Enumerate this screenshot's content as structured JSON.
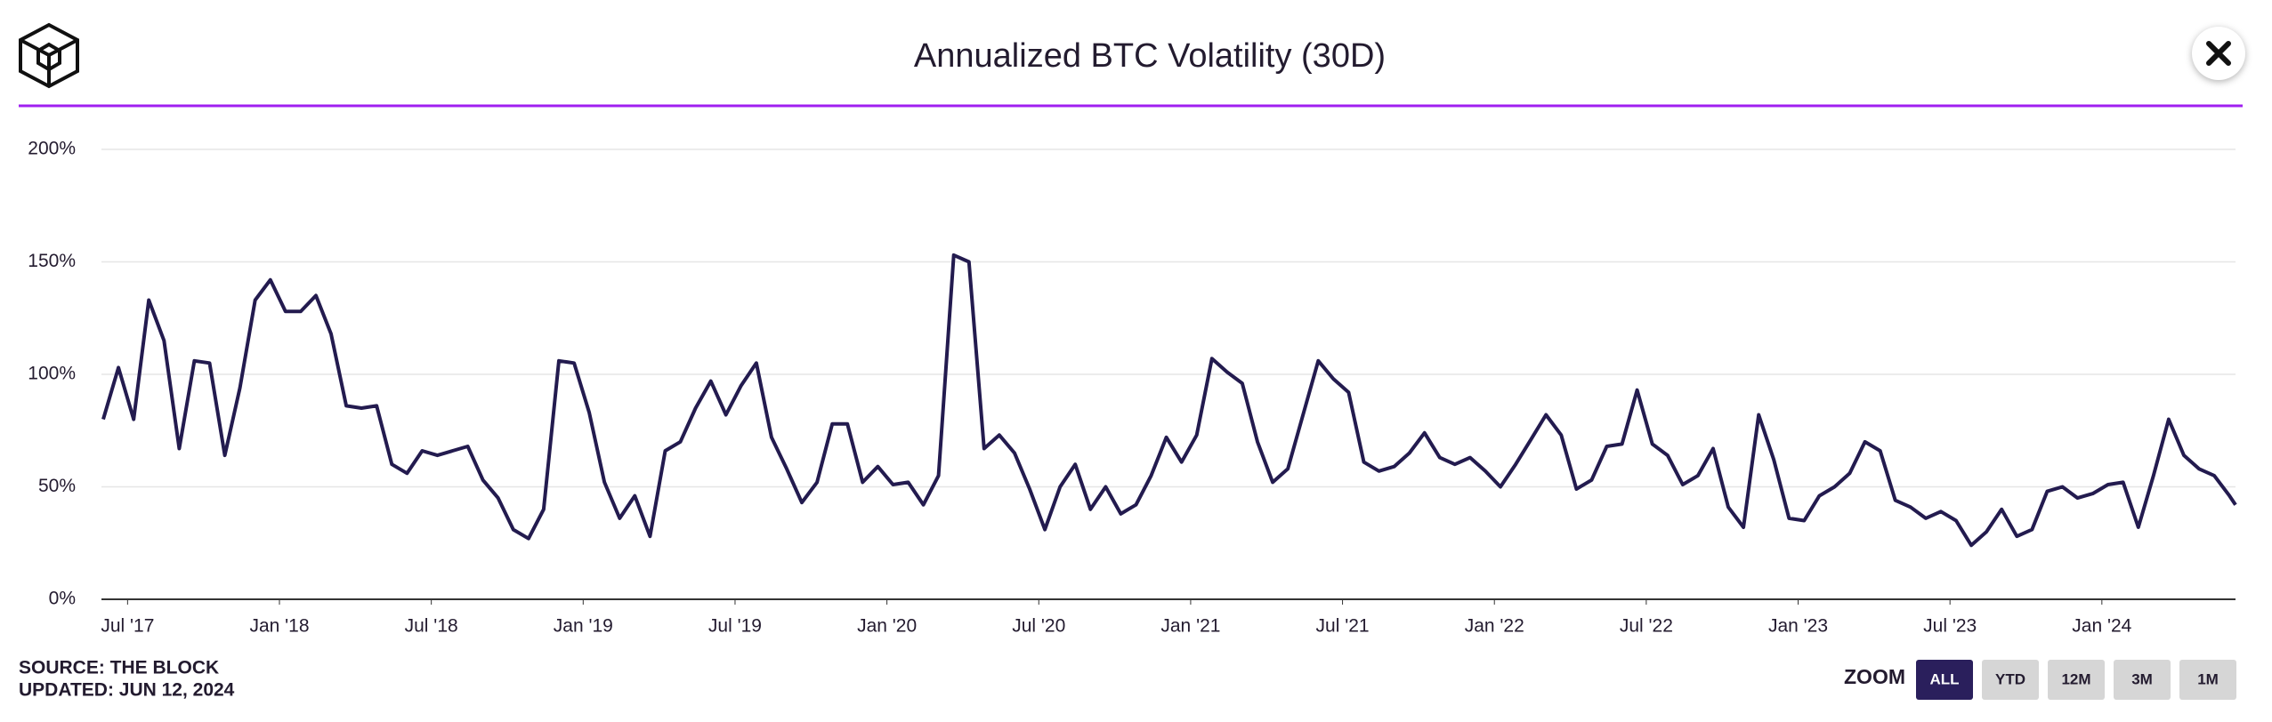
{
  "chart_data": {
    "type": "line",
    "title": "Annualized BTC Volatility (30D)",
    "color": "#231b4f",
    "grid": true,
    "x": [
      2017.42,
      2017.47,
      2017.52,
      2017.57,
      2017.62,
      2017.67,
      2017.72,
      2017.77,
      2017.82,
      2017.87,
      2017.92,
      2017.97,
      2018.02,
      2018.07,
      2018.12,
      2018.17,
      2018.22,
      2018.27,
      2018.32,
      2018.37,
      2018.42,
      2018.47,
      2018.52,
      2018.57,
      2018.62,
      2018.67,
      2018.72,
      2018.77,
      2018.82,
      2018.87,
      2018.92,
      2018.97,
      2019.02,
      2019.07,
      2019.12,
      2019.17,
      2019.22,
      2019.27,
      2019.32,
      2019.37,
      2019.42,
      2019.47,
      2019.52,
      2019.57,
      2019.62,
      2019.67,
      2019.72,
      2019.77,
      2019.82,
      2019.87,
      2019.92,
      2019.97,
      2020.02,
      2020.07,
      2020.12,
      2020.17,
      2020.22,
      2020.27,
      2020.32,
      2020.37,
      2020.42,
      2020.47,
      2020.52,
      2020.57,
      2020.62,
      2020.67,
      2020.72,
      2020.77,
      2020.82,
      2020.87,
      2020.92,
      2020.97,
      2021.02,
      2021.07,
      2021.12,
      2021.17,
      2021.22,
      2021.27,
      2021.32,
      2021.37,
      2021.42,
      2021.47,
      2021.52,
      2021.57,
      2021.62,
      2021.67,
      2021.72,
      2021.77,
      2021.82,
      2021.87,
      2021.92,
      2021.97,
      2022.02,
      2022.07,
      2022.12,
      2022.17,
      2022.22,
      2022.27,
      2022.32,
      2022.37,
      2022.42,
      2022.47,
      2022.52,
      2022.57,
      2022.62,
      2022.67,
      2022.72,
      2022.77,
      2022.82,
      2022.87,
      2022.92,
      2022.97,
      2023.02,
      2023.07,
      2023.12,
      2023.17,
      2023.22,
      2023.27,
      2023.32,
      2023.37,
      2023.42,
      2023.47,
      2023.52,
      2023.57,
      2023.62,
      2023.67,
      2023.72,
      2023.77,
      2023.82,
      2023.87,
      2023.92,
      2023.97,
      2024.02,
      2024.07,
      2024.12,
      2024.17,
      2024.22,
      2024.27,
      2024.32,
      2024.37,
      2024.42,
      2024.44
    ],
    "values": [
      80,
      103,
      80,
      133,
      115,
      67,
      106,
      105,
      64,
      94,
      133,
      142,
      128,
      128,
      135,
      118,
      86,
      85,
      86,
      60,
      56,
      66,
      64,
      66,
      68,
      53,
      45,
      31,
      27,
      40,
      106,
      105,
      83,
      52,
      36,
      46,
      28,
      66,
      70,
      85,
      97,
      82,
      95,
      105,
      72,
      58,
      43,
      52,
      78,
      78,
      52,
      59,
      51,
      52,
      42,
      55,
      153,
      150,
      67,
      73,
      65,
      49,
      31,
      50,
      60,
      40,
      50,
      38,
      42,
      55,
      72,
      61,
      73,
      107,
      101,
      96,
      70,
      52,
      58,
      82,
      106,
      98,
      92,
      61,
      57,
      59,
      65,
      74,
      63,
      60,
      63,
      57,
      50,
      60,
      71,
      82,
      73,
      49,
      53,
      68,
      69,
      93,
      69,
      64,
      51,
      55,
      67,
      41,
      32,
      82,
      62,
      36,
      35,
      46,
      50,
      56,
      70,
      66,
      44,
      41,
      36,
      39,
      35,
      24,
      30,
      40,
      28,
      31,
      48,
      50,
      45,
      47,
      51,
      52,
      32,
      55,
      80,
      64,
      58,
      55,
      46,
      42
    ],
    "xlim": [
      2017.414,
      2024.44
    ],
    "xticks": [
      {
        "value": 2017.5,
        "label": "Jul '17"
      },
      {
        "value": 2018.0,
        "label": "Jan '18"
      },
      {
        "value": 2018.5,
        "label": "Jul '18"
      },
      {
        "value": 2019.0,
        "label": "Jan '19"
      },
      {
        "value": 2019.5,
        "label": "Jul '19"
      },
      {
        "value": 2020.0,
        "label": "Jan '20"
      },
      {
        "value": 2020.5,
        "label": "Jul '20"
      },
      {
        "value": 2021.0,
        "label": "Jan '21"
      },
      {
        "value": 2021.5,
        "label": "Jul '21"
      },
      {
        "value": 2022.0,
        "label": "Jan '22"
      },
      {
        "value": 2022.5,
        "label": "Jul '22"
      },
      {
        "value": 2023.0,
        "label": "Jan '23"
      },
      {
        "value": 2023.5,
        "label": "Jul '23"
      },
      {
        "value": 2024.0,
        "label": "Jan '24"
      }
    ],
    "ylim": [
      0,
      200
    ],
    "yticks": [
      {
        "value": 0,
        "label": "0%"
      },
      {
        "value": 50,
        "label": "50%"
      },
      {
        "value": 100,
        "label": "100%"
      },
      {
        "value": 150,
        "label": "150%"
      },
      {
        "value": 200,
        "label": "200%"
      }
    ]
  },
  "footer": {
    "source": "SOURCE: THE BLOCK",
    "updated": "UPDATED: JUN 12, 2024"
  },
  "zoom": {
    "label": "ZOOM",
    "buttons": [
      "ALL",
      "YTD",
      "12M",
      "3M",
      "1M"
    ],
    "active": 0
  }
}
